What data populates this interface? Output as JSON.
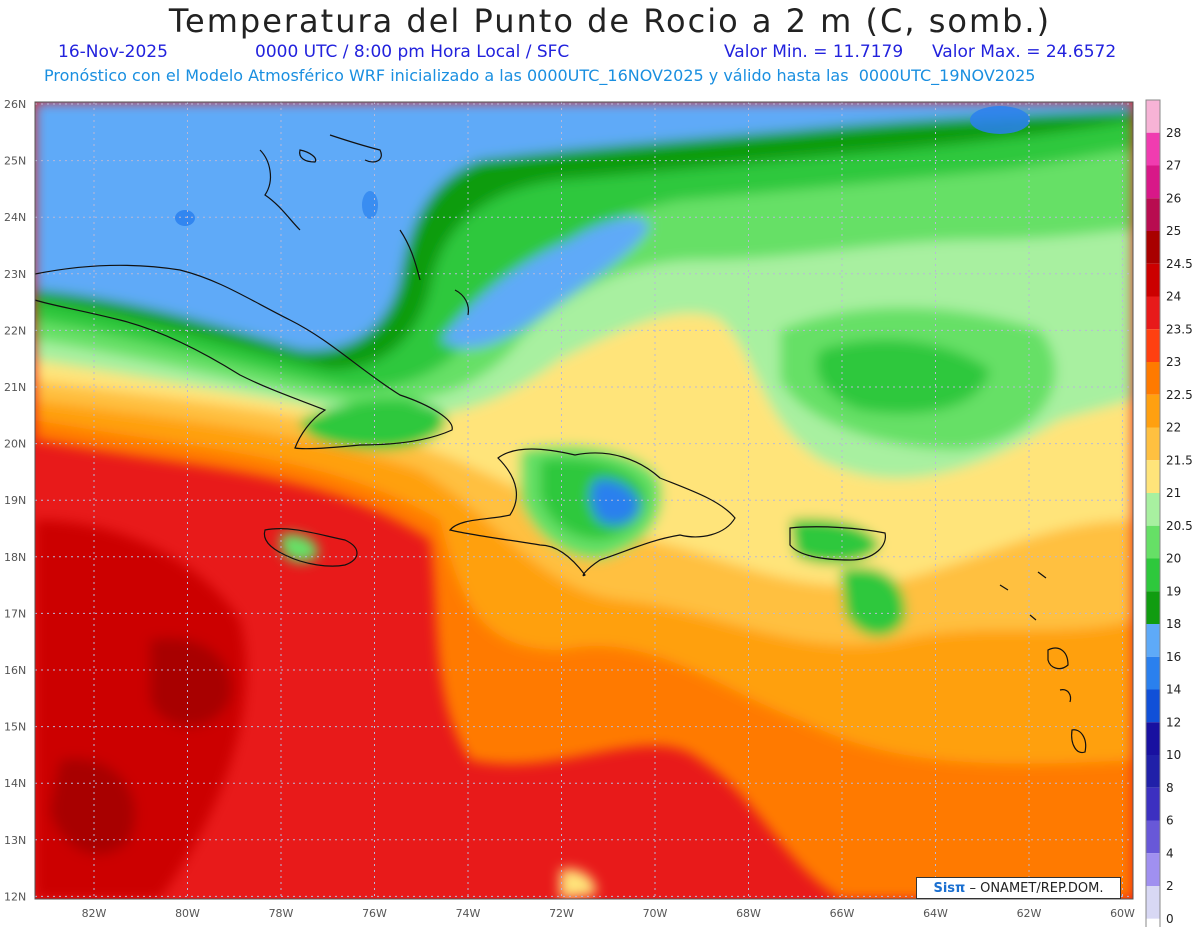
{
  "header": {
    "title": "Temperatura del Punto de Rocio a 2 m (C, somb.)",
    "date": "16-Nov-2025",
    "time": "0000 UTC / 8:00 pm Hora Local / SFC",
    "min": "Valor Min. = 11.7179",
    "max": "Valor Max. = 24.6572",
    "description": "Pronóstico con el Modelo Atmosférico WRF inicializado a las 0000UTC_16NOV2025 y válido hasta las  0000UTC_19NOV2025"
  },
  "axes": {
    "lat_labels": [
      "26N",
      "25N",
      "24N",
      "23N",
      "22N",
      "21N",
      "20N",
      "19N",
      "18N",
      "17N",
      "16N",
      "15N",
      "14N",
      "13N",
      "12N"
    ],
    "lon_labels": [
      "82W",
      "80W",
      "78W",
      "76W",
      "74W",
      "72W",
      "70W",
      "68W",
      "66W",
      "64W",
      "62W",
      "60W"
    ]
  },
  "legend": {
    "labels": [
      "28",
      "27",
      "26",
      "25",
      "24.5",
      "24",
      "23.5",
      "23",
      "22.5",
      "22",
      "21.5",
      "21",
      "20.5",
      "20",
      "19",
      "18",
      "16",
      "14",
      "12",
      "10",
      "8",
      "6",
      "4",
      "2",
      "0"
    ],
    "colors": [
      "#f7b3d6",
      "#f03cb0",
      "#d81888",
      "#b80c50",
      "#a80000",
      "#cc0000",
      "#e81a1a",
      "#ff4010",
      "#ff7a00",
      "#ffa010",
      "#ffc040",
      "#ffe47a",
      "#a8f0a0",
      "#66e066",
      "#2ec83c",
      "#109c10",
      "#5eaaf8",
      "#2a80ee",
      "#1050d8",
      "#1810a0",
      "#2020a8",
      "#3c30c0",
      "#6858d8",
      "#a090f0",
      "#d8d8f4"
    ],
    "bottom_color": "#ffffff"
  },
  "credit": {
    "sis": "Sisπ",
    "rest": "– ONAMET/REP.DOM."
  }
}
